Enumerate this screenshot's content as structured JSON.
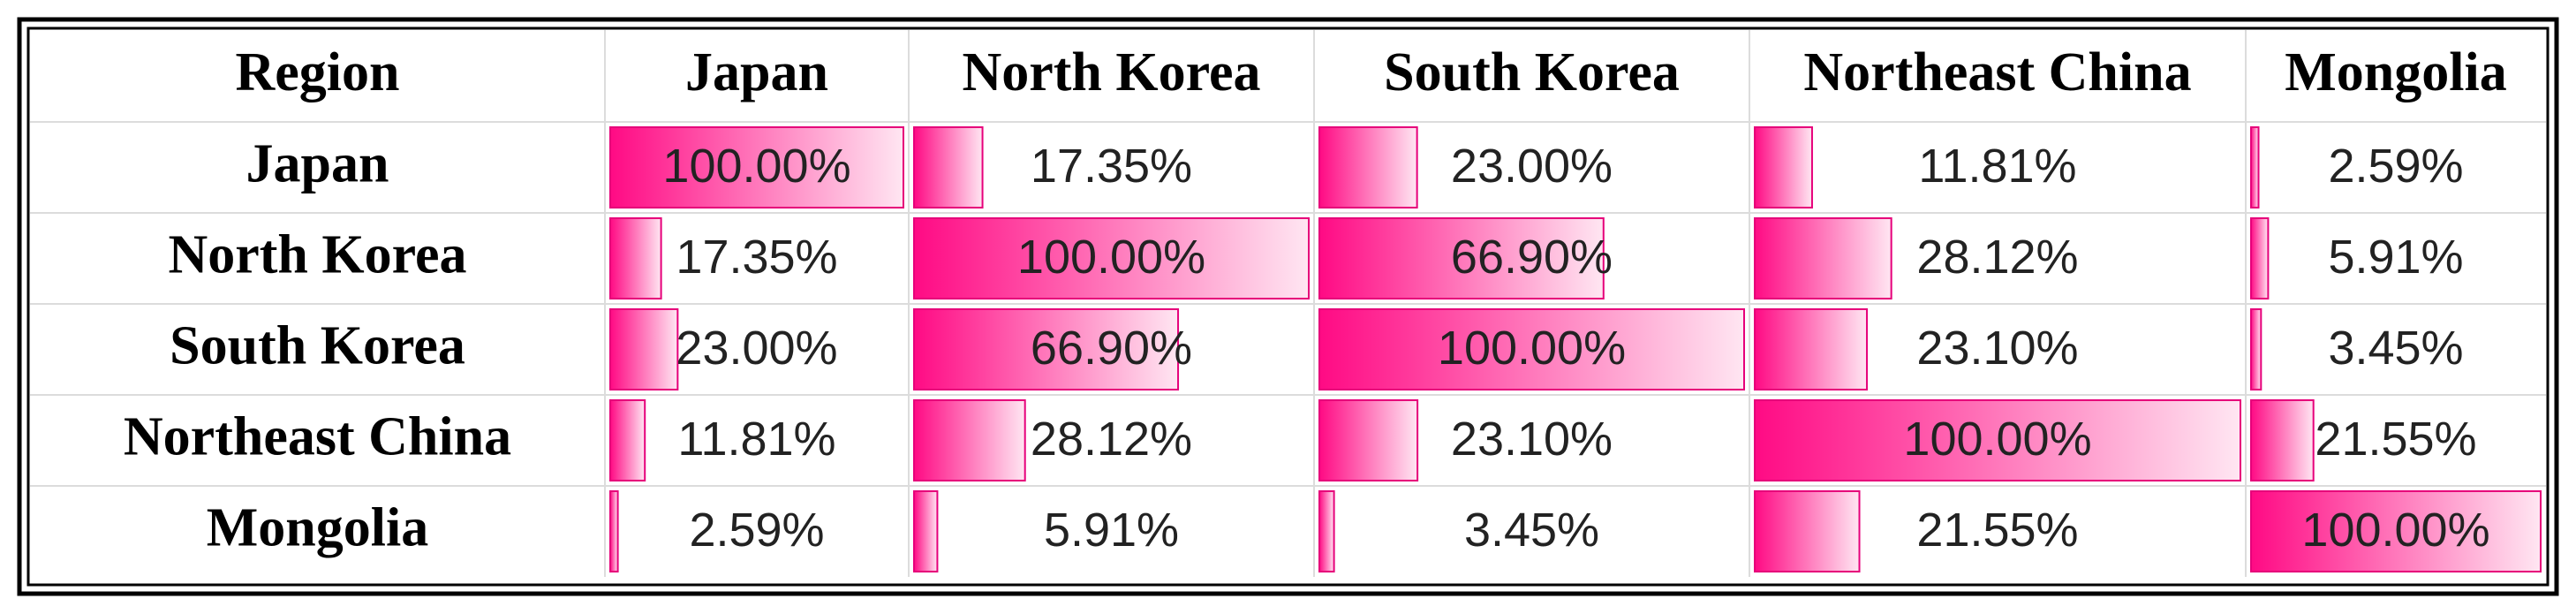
{
  "table": {
    "header": [
      "Region",
      "Japan",
      "North Korea",
      "South Korea",
      "Northeast China",
      "Mongolia"
    ],
    "rows": [
      {
        "label": "Japan",
        "cells": [
          {
            "value": 100,
            "label": "100.00%"
          },
          {
            "value": 17.35,
            "label": "17.35%"
          },
          {
            "value": 23,
            "label": "23.00%"
          },
          {
            "value": 11.81,
            "label": "11.81%"
          },
          {
            "value": 2.59,
            "label": "2.59%"
          }
        ]
      },
      {
        "label": "North Korea",
        "cells": [
          {
            "value": 17.35,
            "label": "17.35%"
          },
          {
            "value": 100,
            "label": "100.00%"
          },
          {
            "value": 66.9,
            "label": "66.90%"
          },
          {
            "value": 28.12,
            "label": "28.12%"
          },
          {
            "value": 5.91,
            "label": "5.91%"
          }
        ]
      },
      {
        "label": "South Korea",
        "cells": [
          {
            "value": 23,
            "label": "23.00%"
          },
          {
            "value": 66.9,
            "label": "66.90%"
          },
          {
            "value": 100,
            "label": "100.00%"
          },
          {
            "value": 23.1,
            "label": "23.10%"
          },
          {
            "value": 3.45,
            "label": "3.45%"
          }
        ]
      },
      {
        "label": "Northeast China",
        "cells": [
          {
            "value": 11.81,
            "label": "11.81%"
          },
          {
            "value": 28.12,
            "label": "28.12%"
          },
          {
            "value": 23.1,
            "label": "23.10%"
          },
          {
            "value": 100,
            "label": "100.00%"
          },
          {
            "value": 21.55,
            "label": "21.55%"
          }
        ]
      },
      {
        "label": "Mongolia",
        "cells": [
          {
            "value": 2.59,
            "label": "2.59%"
          },
          {
            "value": 5.91,
            "label": "5.91%"
          },
          {
            "value": 3.45,
            "label": "3.45%"
          },
          {
            "value": 21.55,
            "label": "21.55%"
          },
          {
            "value": 100,
            "label": "100.00%"
          }
        ]
      }
    ]
  }
}
